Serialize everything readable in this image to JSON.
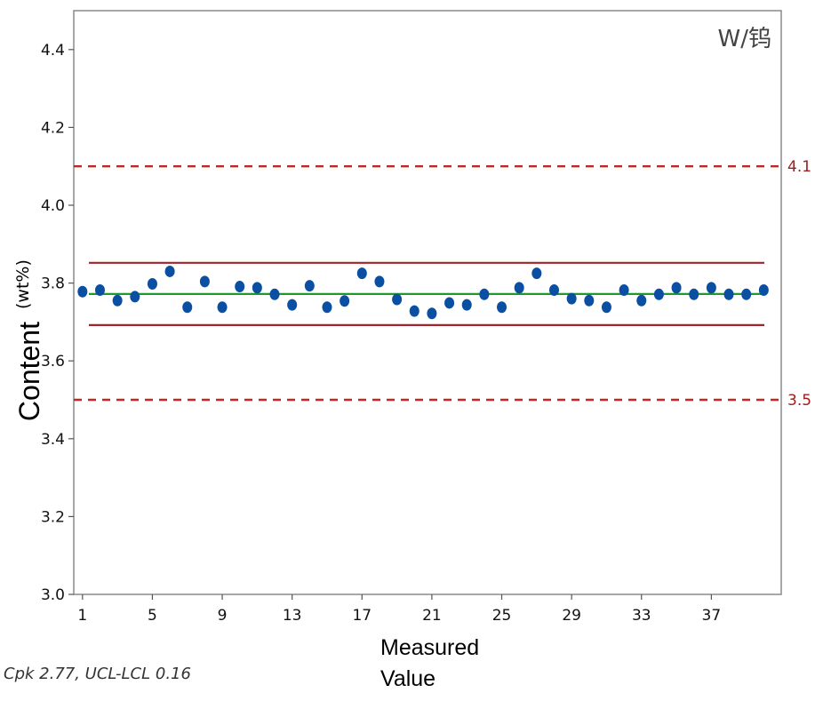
{
  "chart_data": {
    "type": "scatter",
    "title": "W/钨",
    "ylabel_main": "Content",
    "ylabel_unit": "(wt%)",
    "xlabel_line1": "Measured",
    "xlabel_line2": "Value",
    "annotation": "Cpk 2.77,  UCL-LCL 0.16",
    "ylim": [
      3.0,
      4.5
    ],
    "xlim": [
      0.5,
      41.0
    ],
    "y_ticks": [
      "3.0",
      "3.2",
      "3.4",
      "3.6",
      "3.8",
      "4.0",
      "4.2",
      "4.4"
    ],
    "x_ticks": [
      "1",
      "5",
      "9",
      "13",
      "17",
      "21",
      "25",
      "29",
      "33",
      "37"
    ],
    "grid": false,
    "legend": "none",
    "x": [
      1,
      2,
      3,
      4,
      5,
      6,
      7,
      8,
      9,
      10,
      11,
      12,
      13,
      14,
      15,
      16,
      17,
      18,
      19,
      20,
      21,
      22,
      23,
      24,
      25,
      26,
      27,
      28,
      29,
      30,
      31,
      32,
      33,
      34,
      35,
      36,
      37,
      38,
      39,
      40
    ],
    "values": [
      3.778,
      3.782,
      3.755,
      3.765,
      3.798,
      3.83,
      3.738,
      3.804,
      3.738,
      3.791,
      3.788,
      3.771,
      3.744,
      3.793,
      3.738,
      3.754,
      3.825,
      3.804,
      3.758,
      3.728,
      3.722,
      3.749,
      3.744,
      3.771,
      3.738,
      3.788,
      3.825,
      3.782,
      3.76,
      3.755,
      3.738,
      3.782,
      3.755,
      3.771,
      3.788,
      3.771,
      3.788,
      3.771,
      3.771,
      3.782
    ],
    "center_line": 3.772,
    "ucl": 3.852,
    "lcl": 3.692,
    "upper_spec": {
      "value": 4.1,
      "label": "4.1"
    },
    "lower_spec": {
      "value": 3.5,
      "label": "3.5"
    },
    "colors": {
      "points": "#0b4fa3",
      "center": "#1f9a2a",
      "control": "#a3232a",
      "spec": "#cc2222",
      "frame": "#8a8a8a"
    }
  }
}
